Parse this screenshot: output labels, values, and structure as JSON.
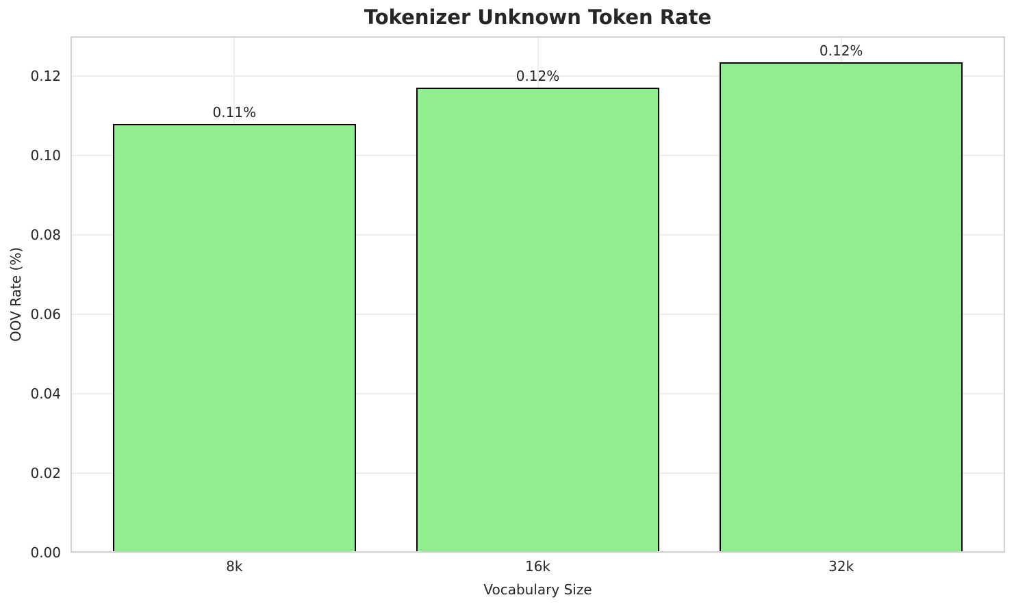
{
  "chart_data": {
    "type": "bar",
    "title": "Tokenizer Unknown Token Rate",
    "xlabel": "Vocabulary Size",
    "ylabel": "OOV Rate (%)",
    "categories": [
      "8k",
      "16k",
      "32k"
    ],
    "values": [
      0.108,
      0.117,
      0.1235
    ],
    "bar_labels": [
      "0.11%",
      "0.12%",
      "0.12%"
    ],
    "ylim": [
      0,
      0.13
    ],
    "yticks": [
      0,
      0.02,
      0.04,
      0.06,
      0.08,
      0.1,
      0.12
    ],
    "ytick_format_decimals": 2,
    "grid": true,
    "legend": "none",
    "colors": {
      "bar_fill": "#90EE90",
      "bar_edge": "#000000",
      "grid": "#ededed",
      "spine": "#d2d2d2",
      "text": "#262626",
      "background": "#ffffff"
    }
  }
}
